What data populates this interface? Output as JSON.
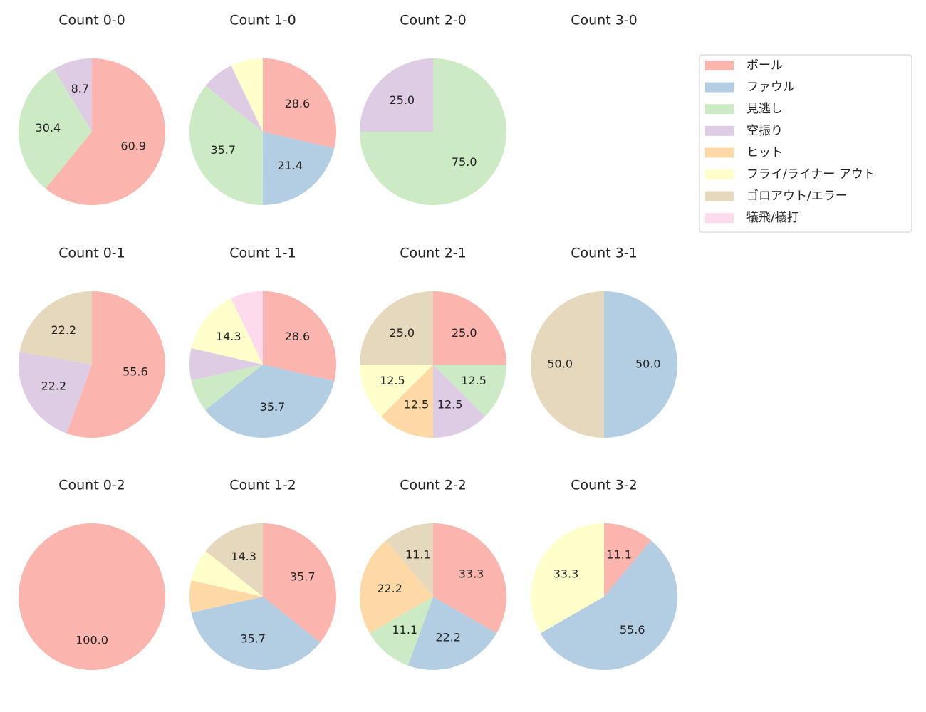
{
  "chart_data": [
    {
      "type": "pie",
      "title": "Count 0-0",
      "categories": [
        "ボール",
        "ファウル",
        "見逃し",
        "空振り",
        "ヒット",
        "フライ/ライナー アウト",
        "ゴロアウト/エラー",
        "犠飛/犠打"
      ],
      "colors": [
        "#fbb4ae",
        "#b3cde3",
        "#ccebc5",
        "#decbe4",
        "#fed9a6",
        "#ffffcc",
        "#e5d8bd",
        "#fddaec"
      ],
      "values": [
        60.9,
        0,
        30.4,
        8.7,
        0,
        0,
        0,
        0
      ],
      "value_labels": [
        "60.9",
        null,
        "30.4",
        "8.7",
        null,
        null,
        null,
        null
      ]
    },
    {
      "type": "pie",
      "title": "Count 1-0",
      "categories": [
        "ボール",
        "ファウル",
        "見逃し",
        "空振り",
        "ヒット",
        "フライ/ライナー アウト",
        "ゴロアウト/エラー",
        "犠飛/犠打"
      ],
      "colors": [
        "#fbb4ae",
        "#b3cde3",
        "#ccebc5",
        "#decbe4",
        "#fed9a6",
        "#ffffcc",
        "#e5d8bd",
        "#fddaec"
      ],
      "values": [
        28.6,
        21.4,
        35.7,
        7.1,
        0,
        7.1,
        0,
        0
      ],
      "value_labels": [
        "28.6",
        "21.4",
        "35.7",
        null,
        null,
        null,
        null,
        null
      ]
    },
    {
      "type": "pie",
      "title": "Count 2-0",
      "categories": [
        "ボール",
        "ファウル",
        "見逃し",
        "空振り",
        "ヒット",
        "フライ/ライナー アウト",
        "ゴロアウト/エラー",
        "犠飛/犠打"
      ],
      "colors": [
        "#fbb4ae",
        "#b3cde3",
        "#ccebc5",
        "#decbe4",
        "#fed9a6",
        "#ffffcc",
        "#e5d8bd",
        "#fddaec"
      ],
      "values": [
        0,
        0,
        75,
        25,
        0,
        0,
        0,
        0
      ],
      "value_labels": [
        null,
        null,
        "75.0",
        "25.0",
        null,
        null,
        null,
        null
      ]
    },
    {
      "type": "pie",
      "title": "Count 3-0"
    },
    {
      "type": "pie",
      "title": "Count 0-1",
      "categories": [
        "ボール",
        "ファウル",
        "見逃し",
        "空振り",
        "ヒット",
        "フライ/ライナー アウト",
        "ゴロアウト/エラー",
        "犠飛/犠打"
      ],
      "colors": [
        "#fbb4ae",
        "#b3cde3",
        "#ccebc5",
        "#decbe4",
        "#fed9a6",
        "#ffffcc",
        "#e5d8bd",
        "#fddaec"
      ],
      "values": [
        55.6,
        0,
        0,
        22.2,
        0,
        0,
        22.2,
        0
      ],
      "value_labels": [
        "55.6",
        null,
        null,
        "22.2",
        null,
        null,
        "22.2",
        null
      ]
    },
    {
      "type": "pie",
      "title": "Count 1-1",
      "categories": [
        "ボール",
        "ファウル",
        "見逃し",
        "空振り",
        "ヒット",
        "フライ/ライナー アウト",
        "ゴロアウト/エラー",
        "犠飛/犠打"
      ],
      "colors": [
        "#fbb4ae",
        "#b3cde3",
        "#ccebc5",
        "#decbe4",
        "#fed9a6",
        "#ffffcc",
        "#e5d8bd",
        "#fddaec"
      ],
      "values": [
        28.6,
        35.7,
        7.1,
        7.1,
        0,
        14.3,
        0,
        7.1
      ],
      "value_labels": [
        "28.6",
        "35.7",
        null,
        null,
        null,
        "14.3",
        null,
        null
      ]
    },
    {
      "type": "pie",
      "title": "Count 2-1",
      "categories": [
        "ボール",
        "ファウル",
        "見逃し",
        "空振り",
        "ヒット",
        "フライ/ライナー アウト",
        "ゴロアウト/エラー",
        "犠飛/犠打"
      ],
      "colors": [
        "#fbb4ae",
        "#b3cde3",
        "#ccebc5",
        "#decbe4",
        "#fed9a6",
        "#ffffcc",
        "#e5d8bd",
        "#fddaec"
      ],
      "values": [
        25,
        0,
        12.5,
        12.5,
        12.5,
        12.5,
        25,
        0
      ],
      "value_labels": [
        "25.0",
        null,
        "12.5",
        "12.5",
        "12.5",
        "12.5",
        "25.0",
        null
      ]
    },
    {
      "type": "pie",
      "title": "Count 3-1",
      "categories": [
        "ボール",
        "ファウル",
        "見逃し",
        "空振り",
        "ヒット",
        "フライ/ライナー アウト",
        "ゴロアウト/エラー",
        "犠飛/犠打"
      ],
      "colors": [
        "#fbb4ae",
        "#b3cde3",
        "#ccebc5",
        "#decbe4",
        "#fed9a6",
        "#ffffcc",
        "#e5d8bd",
        "#fddaec"
      ],
      "values": [
        0,
        50,
        0,
        0,
        0,
        0,
        50,
        0
      ],
      "value_labels": [
        null,
        "50.0",
        null,
        null,
        null,
        null,
        "50.0",
        null
      ]
    },
    {
      "type": "pie",
      "title": "Count 0-2",
      "categories": [
        "ボール",
        "ファウル",
        "見逃し",
        "空振り",
        "ヒット",
        "フライ/ライナー アウト",
        "ゴロアウト/エラー",
        "犠飛/犠打"
      ],
      "colors": [
        "#fbb4ae",
        "#b3cde3",
        "#ccebc5",
        "#decbe4",
        "#fed9a6",
        "#ffffcc",
        "#e5d8bd",
        "#fddaec"
      ],
      "values": [
        100,
        0,
        0,
        0,
        0,
        0,
        0,
        0
      ],
      "value_labels": [
        "100.0",
        null,
        null,
        null,
        null,
        null,
        null,
        null
      ]
    },
    {
      "type": "pie",
      "title": "Count 1-2",
      "categories": [
        "ボール",
        "ファウル",
        "見逃し",
        "空振り",
        "ヒット",
        "フライ/ライナー アウト",
        "ゴロアウト/エラー",
        "犠飛/犠打"
      ],
      "colors": [
        "#fbb4ae",
        "#b3cde3",
        "#ccebc5",
        "#decbe4",
        "#fed9a6",
        "#ffffcc",
        "#e5d8bd",
        "#fddaec"
      ],
      "values": [
        35.7,
        35.7,
        0,
        0,
        7.1,
        7.1,
        14.3,
        0
      ],
      "value_labels": [
        "35.7",
        "35.7",
        null,
        null,
        null,
        null,
        "14.3",
        null
      ]
    },
    {
      "type": "pie",
      "title": "Count 2-2",
      "categories": [
        "ボール",
        "ファウル",
        "見逃し",
        "空振り",
        "ヒット",
        "フライ/ライナー アウト",
        "ゴロアウト/エラー",
        "犠飛/犠打"
      ],
      "colors": [
        "#fbb4ae",
        "#b3cde3",
        "#ccebc5",
        "#decbe4",
        "#fed9a6",
        "#ffffcc",
        "#e5d8bd",
        "#fddaec"
      ],
      "values": [
        33.3,
        22.2,
        11.1,
        0,
        22.2,
        0,
        11.1,
        0
      ],
      "value_labels": [
        "33.3",
        "22.2",
        "11.1",
        null,
        "22.2",
        null,
        "11.1",
        null
      ]
    },
    {
      "type": "pie",
      "title": "Count 3-2",
      "categories": [
        "ボール",
        "ファウル",
        "見逃し",
        "空振り",
        "ヒット",
        "フライ/ライナー アウト",
        "ゴロアウト/エラー",
        "犠飛/犠打"
      ],
      "colors": [
        "#fbb4ae",
        "#b3cde3",
        "#ccebc5",
        "#decbe4",
        "#fed9a6",
        "#ffffcc",
        "#e5d8bd",
        "#fddaec"
      ],
      "values": [
        11.1,
        55.6,
        0,
        0,
        0,
        33.3,
        0,
        0
      ],
      "value_labels": [
        "11.1",
        "55.6",
        null,
        null,
        null,
        "33.3",
        null,
        null
      ]
    }
  ]
}
